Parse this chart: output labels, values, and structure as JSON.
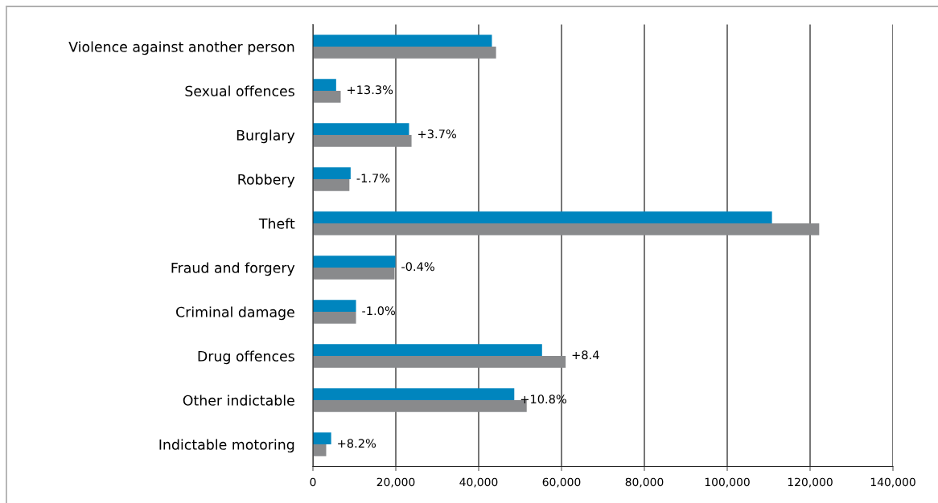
{
  "chart_data": {
    "type": "bar",
    "orientation": "horizontal",
    "categories": [
      "Violence against another person",
      "Sexual offences",
      "Burglary",
      "Robbery",
      "Theft",
      "Fraud and forgery",
      "Criminal damage",
      "Drug offences",
      "Other indictable",
      "Indictable motoring"
    ],
    "series": [
      {
        "color": "#0085be",
        "values": [
          43200,
          5600,
          23200,
          9100,
          110800,
          19900,
          10400,
          55300,
          48600,
          4400
        ]
      },
      {
        "color": "#898a8c",
        "values": [
          44200,
          6700,
          23800,
          8800,
          122200,
          19700,
          10400,
          61000,
          51600,
          3200
        ]
      }
    ],
    "xlim": [
      0,
      140000
    ],
    "xticks": [
      0,
      {
        "value": 20000,
        "label": "20,000"
      },
      {
        "value": 40000,
        "label": "40,000"
      },
      {
        "value": 60000,
        "label": "60,000"
      },
      {
        "value": 80000,
        "label": "80,000"
      },
      {
        "value": 100000,
        "label": "100,000"
      },
      {
        "value": 120000,
        "label": "120,000"
      },
      {
        "value": 140000,
        "label": "140,000"
      }
    ],
    "grid": "x",
    "legend": false,
    "annotations": [
      {
        "text": "+13.3%",
        "x": 6700,
        "y": "Sexual offences"
      },
      {
        "text": "+3.7%",
        "x": 23800,
        "y": "Burglary"
      },
      {
        "text": "-1.7%",
        "x": 9100,
        "y": "Robbery"
      },
      {
        "text": "-0.4%",
        "x": 19900,
        "y": "Fraud and forgery"
      },
      {
        "text": "-1.0%",
        "x": 10400,
        "y": "Criminal damage"
      },
      {
        "text": "+8.4",
        "x": 61000,
        "y": "Drug offences"
      },
      {
        "text": "+10.8%",
        "x": 48600,
        "y": "Other indictable"
      },
      {
        "text": "+8.2%",
        "x": 4400,
        "y": "Indictable motoring"
      }
    ]
  }
}
